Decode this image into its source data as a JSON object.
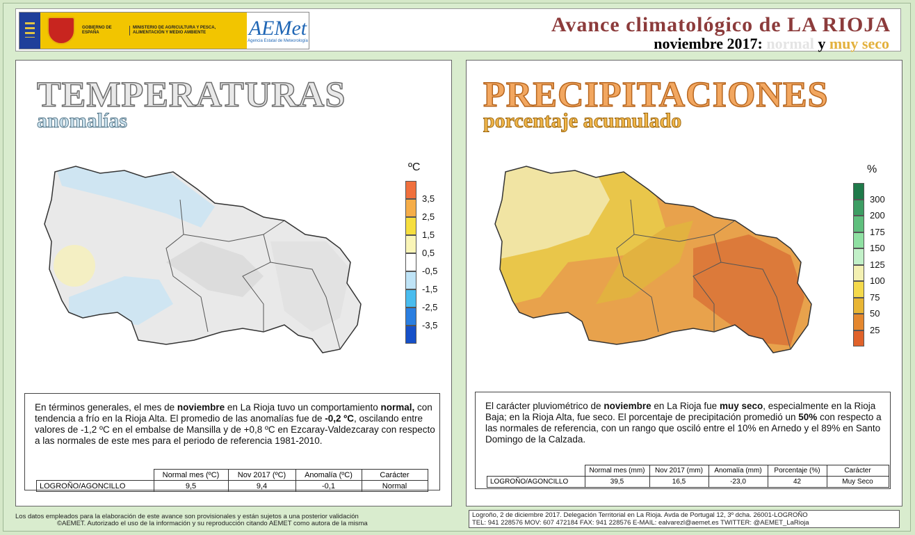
{
  "header": {
    "gov_text": "GOBIERNO DE ESPAÑA",
    "ministry_text": "MINISTERIO DE AGRICULTURA Y PESCA, ALIMENTACIÓN Y MEDIO AMBIENTE",
    "aemet_logo": "AEMet",
    "aemet_sub": "Agencia Estatal de Meteorología",
    "title_prefix": "Avance climatológico de ",
    "title_region": "LA RIOJA",
    "subtitle_month": "noviembre 2017: ",
    "subtitle_temp": "normal",
    "subtitle_and": " y ",
    "subtitle_prec": "muy seco"
  },
  "temperature": {
    "title": "TEMPERATURAS",
    "subtitle": "anomalías",
    "legend_unit": "ºC",
    "legend": [
      {
        "label": "3,5",
        "color": "#f0703d"
      },
      {
        "label": "2,5",
        "color": "#f5ad48"
      },
      {
        "label": "1,5",
        "color": "#f6de3e"
      },
      {
        "label": "0,5",
        "color": "#faf5b7"
      },
      {
        "label": "-0,5",
        "color": "#ffffff"
      },
      {
        "label": "-1,5",
        "color": "#bfe4f7"
      },
      {
        "label": "-2,5",
        "color": "#49bcee"
      },
      {
        "label": "-3,5",
        "color": "#2a7ee0"
      },
      {
        "label": "",
        "color": "#1650c8"
      }
    ],
    "paragraph": {
      "p1": "En términos generales, el mes de ",
      "b1": "noviembre",
      "p2": " en La Rioja tuvo un comportamiento ",
      "b2": "normal,",
      "p3": " con tendencia a frío en la Rioja Alta. El promedio de las anomalías fue de ",
      "b3": "-0,2 ºC",
      "p4": ", oscilando entre valores de -1,2 ºC en el embalse de Mansilla y de +0,8 ºC en Ezcaray-Valdezcaray con respecto a las normales de este mes para el periodo de referencia 1981-2010."
    },
    "table": {
      "headers": [
        "Normal mes (ºC)",
        "Nov 2017 (ºC)",
        "Anomalía (ºC)",
        "Carácter"
      ],
      "station": "LOGROÑO/AGONCILLO",
      "values": [
        "9,5",
        "9,4",
        "-0,1",
        "Normal"
      ]
    }
  },
  "precipitation": {
    "title": "PRECIPITACIONES",
    "subtitle": "porcentaje acumulado",
    "legend_unit": "%",
    "legend": [
      {
        "label": "300",
        "color": "#1f7a4a"
      },
      {
        "label": "200",
        "color": "#3d9d63"
      },
      {
        "label": "175",
        "color": "#5fbf7d"
      },
      {
        "label": "150",
        "color": "#8fe0a2"
      },
      {
        "label": "125",
        "color": "#c2f0c8"
      },
      {
        "label": "100",
        "color": "#f3f0b2"
      },
      {
        "label": "75",
        "color": "#f4d94b"
      },
      {
        "label": "50",
        "color": "#e8b534"
      },
      {
        "label": "25",
        "color": "#e4872e"
      },
      {
        "label": "",
        "color": "#e0622a"
      }
    ],
    "paragraph": {
      "p1": "El carácter pluviométrico de ",
      "b1": "noviembre",
      "p2": " en La Rioja fue ",
      "b2": "muy seco",
      "p3": ", especialmente en la Rioja Baja; en la Rioja Alta, fue seco. El porcentaje de precipitación promedió un ",
      "b3": "50%",
      "p4": " con respecto a las normales de referencia, con un rango que osciló entre el 10% en Arnedo y el 89% en Santo Domingo de la Calzada."
    },
    "table": {
      "headers": [
        "Normal mes (mm)",
        "Nov 2017 (mm)",
        "Anomalía (mm)",
        "Porcentaje (%)",
        "Carácter"
      ],
      "station": "LOGROÑO/AGONCILLO",
      "values": [
        "39,5",
        "16,5",
        "-23,0",
        "42",
        "Muy Seco"
      ]
    }
  },
  "footer": {
    "left_line1": "Los datos empleados para la elaboración de este avance son provisionales y están sujetos a una posterior validación",
    "left_line2": "©AEMET. Autorizado el uso de la información y su reproducción citando AEMET como autora de la misma",
    "right_line1": "Logroño, 2 de diciembre 2017. Delegación Territorial en La Rioja. Avda de Portugal 12, 3º dcha. 26001-LOGROÑO",
    "right_line2": "TEL: 941 228576  MOV: 607 472184 FAX: 941 228576  E-MAIL: ealvarezl@aemet.es  TWITTER: @AEMET_LaRioja"
  }
}
